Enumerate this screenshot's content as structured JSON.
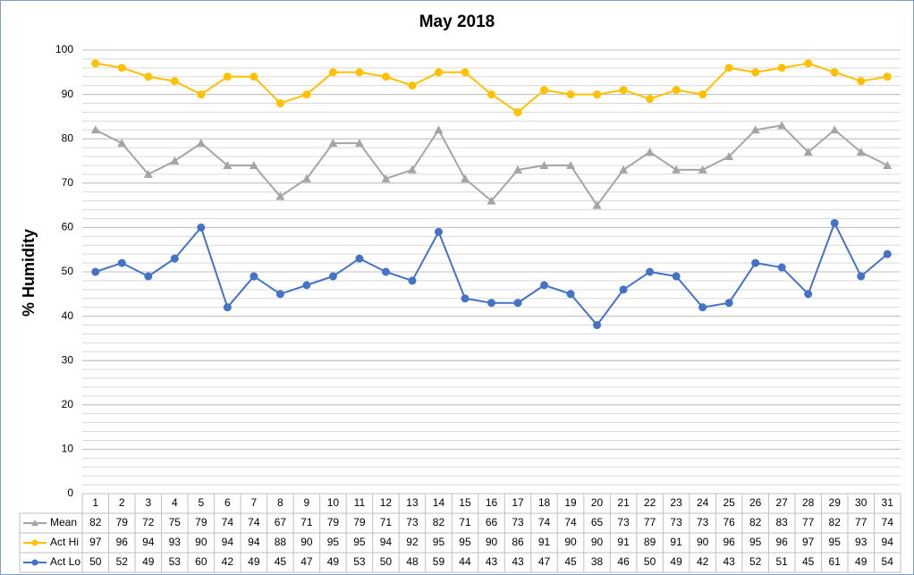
{
  "chart_data": {
    "type": "line",
    "title": "May 2018",
    "y_label": "% Humidity",
    "categories": [
      1,
      2,
      3,
      4,
      5,
      6,
      7,
      8,
      9,
      10,
      11,
      12,
      13,
      14,
      15,
      16,
      17,
      18,
      19,
      20,
      21,
      22,
      23,
      24,
      25,
      26,
      27,
      28,
      29,
      30,
      31
    ],
    "series": [
      {
        "name": "Mean",
        "color": "#a5a5a5",
        "marker": "triangle",
        "values": [
          82,
          79,
          72,
          75,
          79,
          74,
          74,
          67,
          71,
          79,
          79,
          71,
          73,
          82,
          71,
          66,
          73,
          74,
          74,
          65,
          73,
          77,
          73,
          73,
          76,
          82,
          83,
          77,
          82,
          77,
          74
        ]
      },
      {
        "name": "Act Hi",
        "color": "#ffc000",
        "marker": "circle",
        "values": [
          97,
          96,
          94,
          93,
          90,
          94,
          94,
          88,
          90,
          95,
          95,
          94,
          92,
          95,
          95,
          90,
          86,
          91,
          90,
          90,
          91,
          89,
          91,
          90,
          96,
          95,
          96,
          97,
          95,
          93,
          94
        ]
      },
      {
        "name": "Act Lo",
        "color": "#4472c4",
        "marker": "circle",
        "values": [
          50,
          52,
          49,
          53,
          60,
          42,
          49,
          45,
          47,
          49,
          53,
          50,
          48,
          59,
          44,
          43,
          43,
          47,
          45,
          38,
          46,
          50,
          49,
          42,
          43,
          52,
          51,
          45,
          61,
          49,
          54
        ]
      }
    ],
    "ylim": [
      0,
      100
    ],
    "yticks": [
      0,
      10,
      20,
      30,
      40,
      50,
      60,
      70,
      80,
      90,
      100
    ],
    "grid": true,
    "minor_grid_step": 2,
    "data_table": true
  }
}
